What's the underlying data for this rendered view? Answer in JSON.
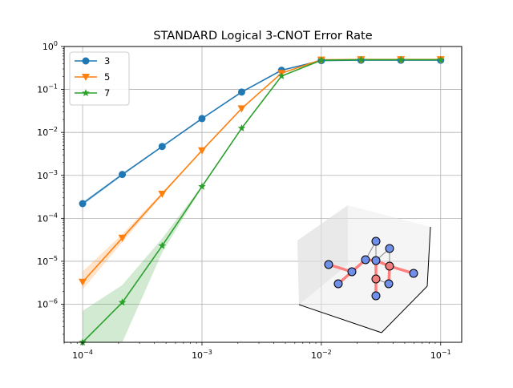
{
  "chart_data": {
    "type": "line",
    "title": "STANDARD Logical 3-CNOT Error Rate",
    "xlabel": "",
    "ylabel": "",
    "xscale": "log",
    "yscale": "log",
    "xlim": [
      7e-05,
      0.15
    ],
    "ylim": [
      1.3e-07,
      1.0
    ],
    "grid": true,
    "legend_position": "top-left",
    "x_ticks": [
      {
        "value": 0.0001,
        "base": "10",
        "exp": "−4"
      },
      {
        "value": 0.001,
        "base": "10",
        "exp": "−3"
      },
      {
        "value": 0.01,
        "base": "10",
        "exp": "−2"
      },
      {
        "value": 0.1,
        "base": "10",
        "exp": "−1"
      }
    ],
    "y_ticks": [
      {
        "value": 1e-06,
        "base": "10",
        "exp": "−6"
      },
      {
        "value": 1e-05,
        "base": "10",
        "exp": "−5"
      },
      {
        "value": 0.0001,
        "base": "10",
        "exp": "−4"
      },
      {
        "value": 0.001,
        "base": "10",
        "exp": "−3"
      },
      {
        "value": 0.01,
        "base": "10",
        "exp": "−2"
      },
      {
        "value": 0.1,
        "base": "10",
        "exp": "−1"
      },
      {
        "value": 1,
        "base": "10",
        "exp": "0"
      }
    ],
    "series": [
      {
        "name": "3",
        "color": "#1f77b4",
        "marker": "circle",
        "x": [
          0.0001,
          0.000215,
          0.000464,
          0.001,
          0.00215,
          0.00464,
          0.01,
          0.0215,
          0.0464,
          0.1
        ],
        "y": [
          0.00022,
          0.00105,
          0.0047,
          0.021,
          0.087,
          0.28,
          0.47,
          0.48,
          0.48,
          0.48
        ],
        "lower": [
          0.0002,
          0.00098,
          0.0045,
          0.0205,
          0.086,
          0.278,
          0.468,
          0.478,
          0.478,
          0.478
        ],
        "upper": [
          0.00024,
          0.00112,
          0.0049,
          0.0215,
          0.088,
          0.282,
          0.472,
          0.482,
          0.482,
          0.482
        ]
      },
      {
        "name": "5",
        "color": "#ff7f0e",
        "marker": "triangle-down",
        "x": [
          0.0001,
          0.000215,
          0.000464,
          0.001,
          0.00215,
          0.00464,
          0.01,
          0.0215,
          0.0464,
          0.1
        ],
        "y": [
          3.3e-06,
          3.5e-05,
          0.00037,
          0.0038,
          0.036,
          0.24,
          0.49,
          0.5,
          0.5,
          0.5
        ],
        "lower": [
          2.2e-06,
          2.8e-05,
          0.00034,
          0.0037,
          0.0355,
          0.238,
          0.488,
          0.498,
          0.498,
          0.498
        ],
        "upper": [
          5.8e-06,
          4.3e-05,
          0.0004,
          0.0039,
          0.0365,
          0.242,
          0.492,
          0.502,
          0.502,
          0.502
        ]
      },
      {
        "name": "7",
        "color": "#2ca02c",
        "marker": "star",
        "x": [
          0.0001,
          0.000215,
          0.000464,
          0.001,
          0.00215,
          0.00464,
          0.01,
          0.0215,
          0.0464,
          0.1
        ],
        "y": [
          1.3e-07,
          1.1e-06,
          2.3e-05,
          0.00055,
          0.0125,
          0.205,
          0.48,
          0.49,
          0.49,
          0.49
        ],
        "lower": [
          1.3e-07,
          1.3e-07,
          1.6e-05,
          0.00052,
          0.0123,
          0.203,
          0.478,
          0.488,
          0.488,
          0.488
        ],
        "upper": [
          7e-07,
          2.8e-06,
          3.4e-05,
          0.00058,
          0.0127,
          0.207,
          0.482,
          0.492,
          0.492,
          0.492
        ]
      }
    ]
  },
  "inset": {
    "description_name": "3d-qubit-lattice",
    "edge_color": "#ff7f7f",
    "qubit_colors": {
      "data": "#6f8fe8",
      "ancilla": "#f08080"
    }
  }
}
